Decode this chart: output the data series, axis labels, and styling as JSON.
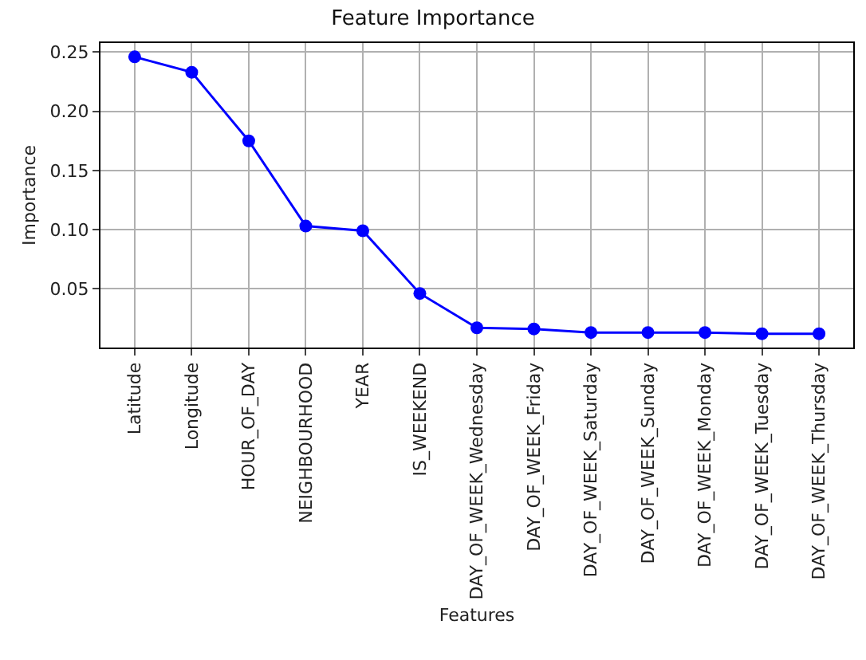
{
  "chart_data": {
    "type": "line",
    "title": "Feature Importance",
    "xlabel": "Features",
    "ylabel": "Importance",
    "categories": [
      "Latitude",
      "Longitude",
      "HOUR_OF_DAY",
      "NEIGHBOURHOOD",
      "YEAR",
      "IS_WEEKEND",
      "DAY_OF_WEEK_Wednesday",
      "DAY_OF_WEEK_Friday",
      "DAY_OF_WEEK_Saturday",
      "DAY_OF_WEEK_Sunday",
      "DAY_OF_WEEK_Monday",
      "DAY_OF_WEEK_Tuesday",
      "DAY_OF_WEEK_Thursday"
    ],
    "values": [
      0.246,
      0.233,
      0.175,
      0.103,
      0.099,
      0.046,
      0.017,
      0.016,
      0.013,
      0.013,
      0.013,
      0.012,
      0.012
    ],
    "color": "#0000ff",
    "marker": "circle",
    "line_style": "solid",
    "grid": true,
    "ylim": [
      0.0003,
      0.2577
    ],
    "yticks": [
      0.05,
      {
        "value": 0.1,
        "label": "0.10"
      },
      0.15,
      {
        "value": 0.2,
        "label": "0.20"
      },
      0.25
    ]
  }
}
